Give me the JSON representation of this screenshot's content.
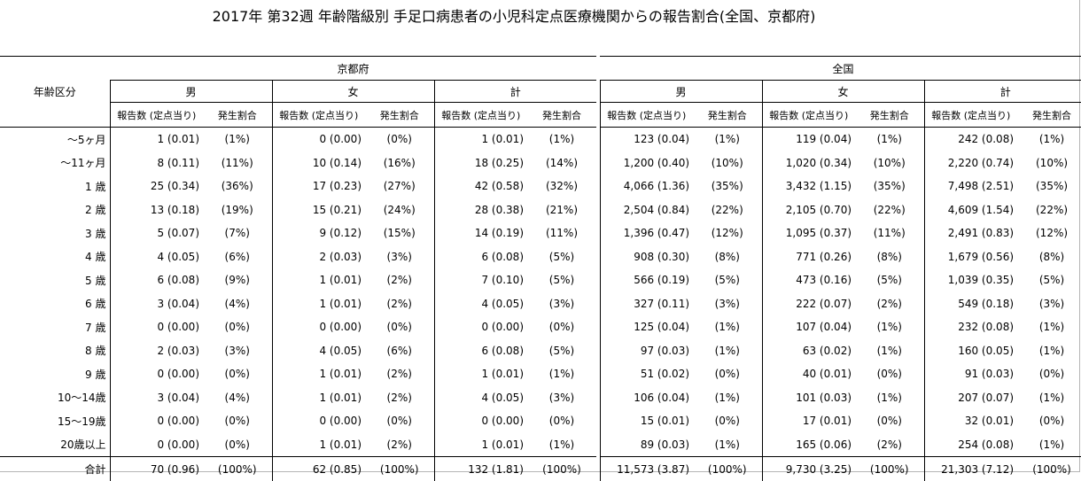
{
  "title": "2017年 第32週 年齢階級別 手足口病患者の小児科定点医療機関からの報告割合(全国、京都府)",
  "header": {
    "age_label": "年齢区分",
    "kyoto": "京都府",
    "national": "全国",
    "male": "男",
    "female": "女",
    "total": "計",
    "reports": "報告数 (定点当り)",
    "ratio": "発生割合"
  },
  "rows": [
    {
      "age": "～5ヶ月",
      "kyoto": [
        [
          "1 (0.01)",
          "(1%)"
        ],
        [
          "0 (0.00)",
          "(0%)"
        ],
        [
          "1 (0.01)",
          "(1%)"
        ]
      ],
      "national": [
        [
          "123 (0.04)",
          "(1%)"
        ],
        [
          "119 (0.04)",
          "(1%)"
        ],
        [
          "242 (0.08)",
          "(1%)"
        ]
      ]
    },
    {
      "age": "～11ヶ月",
      "kyoto": [
        [
          "8 (0.11)",
          "(11%)"
        ],
        [
          "10 (0.14)",
          "(16%)"
        ],
        [
          "18 (0.25)",
          "(14%)"
        ]
      ],
      "national": [
        [
          "1,200 (0.40)",
          "(10%)"
        ],
        [
          "1,020 (0.34)",
          "(10%)"
        ],
        [
          "2,220 (0.74)",
          "(10%)"
        ]
      ]
    },
    {
      "age": "1 歳",
      "kyoto": [
        [
          "25 (0.34)",
          "(36%)"
        ],
        [
          "17 (0.23)",
          "(27%)"
        ],
        [
          "42 (0.58)",
          "(32%)"
        ]
      ],
      "national": [
        [
          "4,066 (1.36)",
          "(35%)"
        ],
        [
          "3,432 (1.15)",
          "(35%)"
        ],
        [
          "7,498 (2.51)",
          "(35%)"
        ]
      ]
    },
    {
      "age": "2 歳",
      "kyoto": [
        [
          "13 (0.18)",
          "(19%)"
        ],
        [
          "15 (0.21)",
          "(24%)"
        ],
        [
          "28 (0.38)",
          "(21%)"
        ]
      ],
      "national": [
        [
          "2,504 (0.84)",
          "(22%)"
        ],
        [
          "2,105 (0.70)",
          "(22%)"
        ],
        [
          "4,609 (1.54)",
          "(22%)"
        ]
      ]
    },
    {
      "age": "3 歳",
      "kyoto": [
        [
          "5 (0.07)",
          "(7%)"
        ],
        [
          "9 (0.12)",
          "(15%)"
        ],
        [
          "14 (0.19)",
          "(11%)"
        ]
      ],
      "national": [
        [
          "1,396 (0.47)",
          "(12%)"
        ],
        [
          "1,095 (0.37)",
          "(11%)"
        ],
        [
          "2,491 (0.83)",
          "(12%)"
        ]
      ]
    },
    {
      "age": "4 歳",
      "kyoto": [
        [
          "4 (0.05)",
          "(6%)"
        ],
        [
          "2 (0.03)",
          "(3%)"
        ],
        [
          "6 (0.08)",
          "(5%)"
        ]
      ],
      "national": [
        [
          "908 (0.30)",
          "(8%)"
        ],
        [
          "771 (0.26)",
          "(8%)"
        ],
        [
          "1,679 (0.56)",
          "(8%)"
        ]
      ]
    },
    {
      "age": "5 歳",
      "kyoto": [
        [
          "6 (0.08)",
          "(9%)"
        ],
        [
          "1 (0.01)",
          "(2%)"
        ],
        [
          "7 (0.10)",
          "(5%)"
        ]
      ],
      "national": [
        [
          "566 (0.19)",
          "(5%)"
        ],
        [
          "473 (0.16)",
          "(5%)"
        ],
        [
          "1,039 (0.35)",
          "(5%)"
        ]
      ]
    },
    {
      "age": "6 歳",
      "kyoto": [
        [
          "3 (0.04)",
          "(4%)"
        ],
        [
          "1 (0.01)",
          "(2%)"
        ],
        [
          "4 (0.05)",
          "(3%)"
        ]
      ],
      "national": [
        [
          "327 (0.11)",
          "(3%)"
        ],
        [
          "222 (0.07)",
          "(2%)"
        ],
        [
          "549 (0.18)",
          "(3%)"
        ]
      ]
    },
    {
      "age": "7 歳",
      "kyoto": [
        [
          "0 (0.00)",
          "(0%)"
        ],
        [
          "0 (0.00)",
          "(0%)"
        ],
        [
          "0 (0.00)",
          "(0%)"
        ]
      ],
      "national": [
        [
          "125 (0.04)",
          "(1%)"
        ],
        [
          "107 (0.04)",
          "(1%)"
        ],
        [
          "232 (0.08)",
          "(1%)"
        ]
      ]
    },
    {
      "age": "8 歳",
      "kyoto": [
        [
          "2 (0.03)",
          "(3%)"
        ],
        [
          "4 (0.05)",
          "(6%)"
        ],
        [
          "6 (0.08)",
          "(5%)"
        ]
      ],
      "national": [
        [
          "97 (0.03)",
          "(1%)"
        ],
        [
          "63 (0.02)",
          "(1%)"
        ],
        [
          "160 (0.05)",
          "(1%)"
        ]
      ]
    },
    {
      "age": "9 歳",
      "kyoto": [
        [
          "0 (0.00)",
          "(0%)"
        ],
        [
          "1 (0.01)",
          "(2%)"
        ],
        [
          "1 (0.01)",
          "(1%)"
        ]
      ],
      "national": [
        [
          "51 (0.02)",
          "(0%)"
        ],
        [
          "40 (0.01)",
          "(0%)"
        ],
        [
          "91 (0.03)",
          "(0%)"
        ]
      ]
    },
    {
      "age": "10～14歳",
      "kyoto": [
        [
          "3 (0.04)",
          "(4%)"
        ],
        [
          "1 (0.01)",
          "(2%)"
        ],
        [
          "4 (0.05)",
          "(3%)"
        ]
      ],
      "national": [
        [
          "106 (0.04)",
          "(1%)"
        ],
        [
          "101 (0.03)",
          "(1%)"
        ],
        [
          "207 (0.07)",
          "(1%)"
        ]
      ]
    },
    {
      "age": "15～19歳",
      "kyoto": [
        [
          "0 (0.00)",
          "(0%)"
        ],
        [
          "0 (0.00)",
          "(0%)"
        ],
        [
          "0 (0.00)",
          "(0%)"
        ]
      ],
      "national": [
        [
          "15 (0.01)",
          "(0%)"
        ],
        [
          "17 (0.01)",
          "(0%)"
        ],
        [
          "32 (0.01)",
          "(0%)"
        ]
      ]
    },
    {
      "age": "20歳以上",
      "kyoto": [
        [
          "0 (0.00)",
          "(0%)"
        ],
        [
          "1 (0.01)",
          "(2%)"
        ],
        [
          "1 (0.01)",
          "(1%)"
        ]
      ],
      "national": [
        [
          "89 (0.03)",
          "(1%)"
        ],
        [
          "165 (0.06)",
          "(2%)"
        ],
        [
          "254 (0.08)",
          "(1%)"
        ]
      ]
    }
  ],
  "total": {
    "age": "合計",
    "kyoto": [
      [
        "70 (0.96)",
        "(100%)"
      ],
      [
        "62 (0.85)",
        "(100%)"
      ],
      [
        "132 (1.81)",
        "(100%)"
      ]
    ],
    "national": [
      [
        "11,573 (3.87)",
        "(100%)"
      ],
      [
        "9,730 (3.25)",
        "(100%)"
      ],
      [
        "21,303 (7.12)",
        "(100%)"
      ]
    ]
  }
}
